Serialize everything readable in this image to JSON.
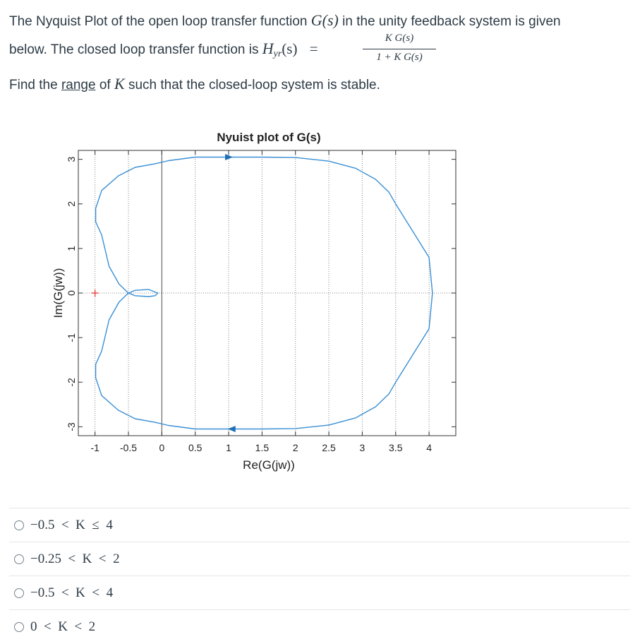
{
  "question": {
    "line1_prefix": "The Nyquist Plot of the open loop transfer function",
    "line1_math": "G(s)",
    "line1_suffix": "in the unity feedback system is given",
    "line2_prefix": "below. The closed loop transfer function is",
    "line2_math": "H",
    "line2_sub": "yr",
    "line2_math_tail": "(s)",
    "equals": "=",
    "frac_num": "K G(s)",
    "frac_den": "1 + K G(s)",
    "line3_prefix": "Find the",
    "line3_link": "range",
    "line3_mid": "of",
    "line3_math": "K",
    "line3_suffix": "such that the closed-loop system is stable."
  },
  "chart_data": {
    "type": "line",
    "title": "Nyuist plot of G(s)",
    "xlabel": "Re(G(jw))",
    "ylabel": "Im(G(jw))",
    "xlim": [
      -1.25,
      4.4
    ],
    "ylim": [
      -3.2,
      3.2
    ],
    "xticks": [
      "-1",
      "-0.5",
      "0",
      "0.5",
      "1",
      "1.5",
      "2",
      "2.5",
      "3",
      "3.5",
      "4"
    ],
    "xtick_values": [
      -1,
      -0.5,
      0,
      0.5,
      1,
      1.5,
      2,
      2.5,
      3,
      3.5,
      4
    ],
    "yticks": [
      "3",
      "2",
      "1",
      "0",
      "-1",
      "-2",
      "-3"
    ],
    "ytick_values": [
      3,
      2,
      1,
      0,
      -1,
      -2,
      -3
    ],
    "grid": "x-dotted",
    "critical_point": {
      "x": -1,
      "y": 0,
      "marker": "+",
      "color": "#e53935"
    },
    "series": [
      {
        "color": "#3a8fd4",
        "x": [
          -0.5,
          -0.64,
          -0.79,
          -0.9,
          -0.99,
          -0.99,
          -0.9,
          -0.65,
          -0.4,
          -0.1,
          0.1,
          0.5,
          1.0,
          1.5,
          2.0,
          2.5,
          2.9,
          3.2,
          3.4,
          3.5,
          4.0,
          4.05,
          4.0,
          3.5,
          3.4,
          3.2,
          2.9,
          2.5,
          2.0,
          1.5,
          1.0,
          0.5,
          0.1,
          -0.1,
          -0.4,
          -0.65,
          -0.9,
          -0.99,
          -0.99,
          -0.9,
          -0.79,
          -0.64,
          -0.5,
          -0.4,
          -0.2,
          -0.06,
          -0.1,
          -0.2,
          -0.4,
          -0.5
        ],
        "y": [
          0.0,
          0.2,
          0.6,
          1.3,
          1.6,
          1.9,
          2.3,
          2.63,
          2.82,
          2.9,
          2.97,
          3.05,
          3.05,
          3.05,
          3.04,
          2.96,
          2.8,
          2.55,
          2.26,
          2.0,
          0.8,
          0.0,
          -0.8,
          -2.0,
          -2.26,
          -2.55,
          -2.8,
          -2.96,
          -3.04,
          -3.05,
          -3.05,
          -3.05,
          -2.97,
          -2.9,
          -2.82,
          -2.63,
          -2.3,
          -1.9,
          -1.6,
          -1.3,
          -0.6,
          -0.2,
          0.0,
          0.06,
          0.08,
          0.0,
          -0.06,
          -0.08,
          -0.06,
          0.0
        ]
      }
    ],
    "arrows": [
      {
        "x": 1.0,
        "y": 3.05,
        "direction": "right"
      },
      {
        "x": 1.05,
        "y": -3.05,
        "direction": "left"
      }
    ]
  },
  "answers": [
    {
      "text": "−0.5  <  K  ≤  4"
    },
    {
      "text": "−0.25  <  K  <  2"
    },
    {
      "text": "−0.5  <  K  <  4"
    },
    {
      "text": "0  <  K  <  2"
    }
  ]
}
